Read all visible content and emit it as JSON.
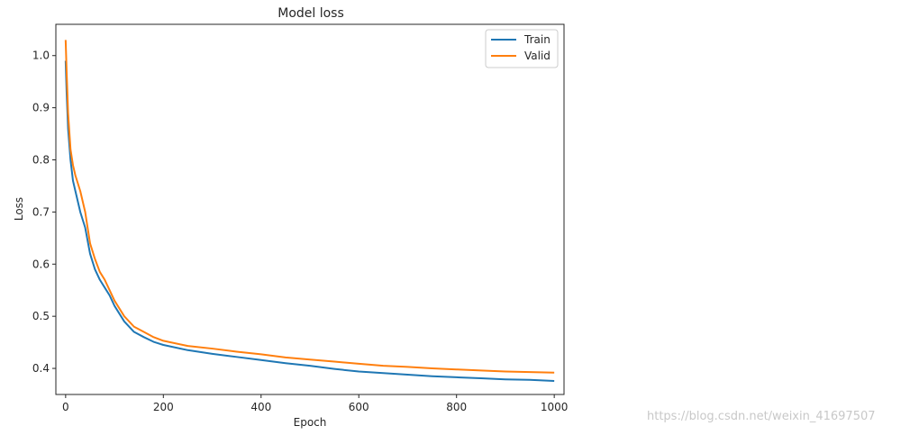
{
  "chart_data": {
    "type": "line",
    "title": "Model loss",
    "xlabel": "Epoch",
    "ylabel": "Loss",
    "xlim": [
      -20,
      1020
    ],
    "ylim": [
      0.35,
      1.06
    ],
    "xticks": [
      0,
      200,
      400,
      600,
      800,
      1000
    ],
    "yticks": [
      0.4,
      0.5,
      0.6,
      0.7,
      0.8,
      0.9,
      1.0
    ],
    "legend_position": "top-right",
    "grid": false,
    "series": [
      {
        "name": "Train",
        "color": "#1f77b4",
        "x": [
          0,
          2,
          5,
          10,
          15,
          20,
          30,
          40,
          50,
          60,
          70,
          80,
          90,
          100,
          120,
          140,
          160,
          180,
          200,
          250,
          300,
          350,
          400,
          450,
          500,
          550,
          600,
          650,
          700,
          750,
          800,
          850,
          900,
          950,
          1000
        ],
        "y": [
          0.99,
          0.93,
          0.86,
          0.8,
          0.76,
          0.74,
          0.7,
          0.67,
          0.62,
          0.59,
          0.57,
          0.555,
          0.54,
          0.52,
          0.49,
          0.47,
          0.46,
          0.451,
          0.445,
          0.435,
          0.428,
          0.422,
          0.416,
          0.41,
          0.405,
          0.399,
          0.394,
          0.391,
          0.388,
          0.385,
          0.383,
          0.381,
          0.379,
          0.378,
          0.376
        ]
      },
      {
        "name": "Valid",
        "color": "#ff7f0e",
        "x": [
          0,
          2,
          5,
          10,
          15,
          20,
          30,
          40,
          50,
          60,
          70,
          80,
          90,
          100,
          120,
          140,
          160,
          180,
          200,
          250,
          300,
          350,
          400,
          450,
          500,
          550,
          600,
          650,
          700,
          750,
          800,
          850,
          900,
          950,
          1000
        ],
        "y": [
          1.03,
          0.97,
          0.89,
          0.82,
          0.79,
          0.77,
          0.74,
          0.7,
          0.64,
          0.61,
          0.585,
          0.57,
          0.55,
          0.53,
          0.5,
          0.48,
          0.47,
          0.46,
          0.453,
          0.443,
          0.438,
          0.432,
          0.427,
          0.421,
          0.417,
          0.413,
          0.409,
          0.405,
          0.403,
          0.4,
          0.398,
          0.396,
          0.394,
          0.393,
          0.392
        ]
      }
    ]
  },
  "watermark": "https://blog.csdn.net/weixin_41697507"
}
